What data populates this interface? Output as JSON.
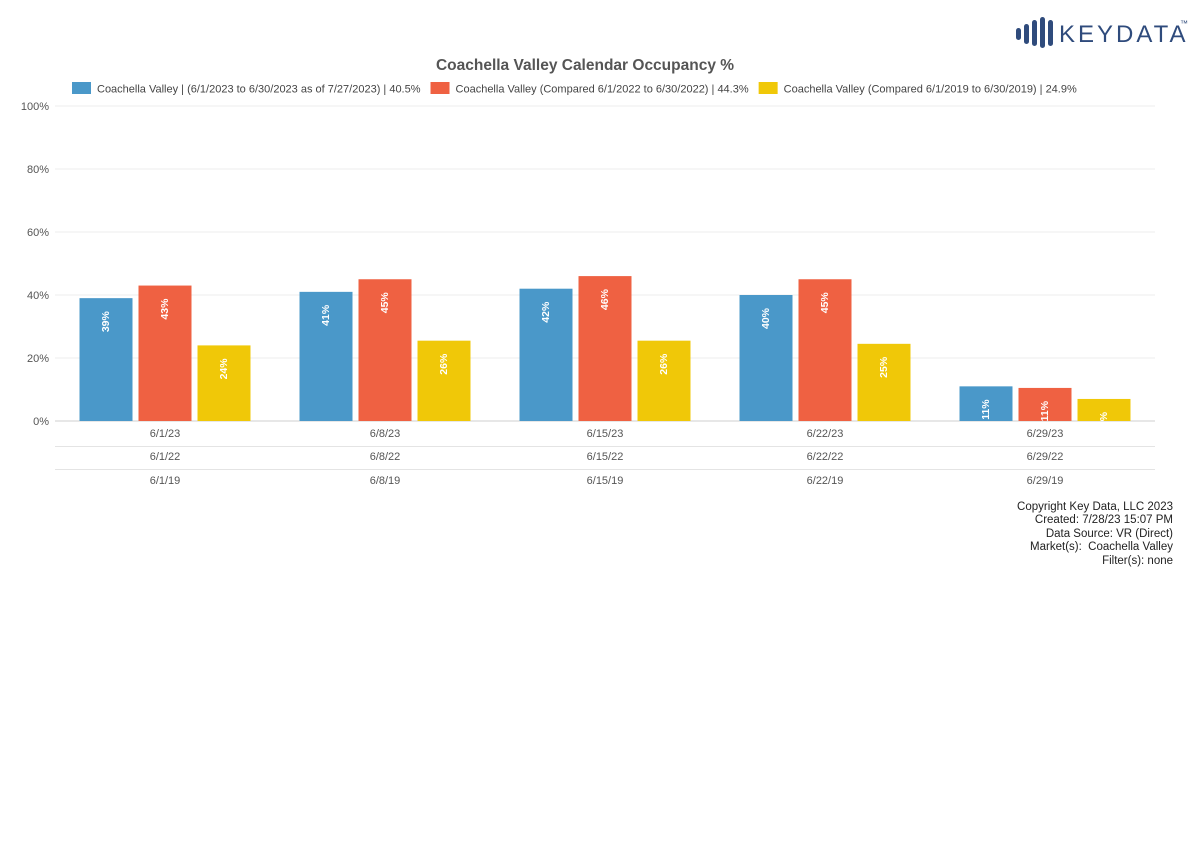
{
  "brand": {
    "logo_text": "KEYDATA",
    "trademark": "™",
    "color": "#2f4b7c"
  },
  "chart_data": {
    "type": "bar",
    "title": "Coachella Valley Calendar Occupancy %",
    "xlabel": "",
    "ylabel": "",
    "ylim": [
      0,
      100
    ],
    "yticks": [
      0,
      20,
      40,
      60,
      80,
      100
    ],
    "ytick_labels": [
      "0%",
      "20%",
      "40%",
      "60%",
      "80%",
      "100%"
    ],
    "grid": true,
    "legend_position": "top",
    "category_rows": [
      [
        "6/1/23",
        "6/8/23",
        "6/15/23",
        "6/22/23",
        "6/29/23"
      ],
      [
        "6/1/22",
        "6/8/22",
        "6/15/22",
        "6/22/22",
        "6/29/22"
      ],
      [
        "6/1/19",
        "6/8/19",
        "6/15/19",
        "6/22/19",
        "6/29/19"
      ]
    ],
    "series": [
      {
        "name": "Coachella Valley | (6/1/2023 to 6/30/2023 as of 7/27/2023) | 40.5%",
        "color": "#4a98c9",
        "values": [
          39,
          41,
          42,
          40,
          11
        ],
        "labels": [
          "39%",
          "41%",
          "42%",
          "40%",
          "11%"
        ]
      },
      {
        "name": "Coachella Valley (Compared 6/1/2022 to 6/30/2022) | 44.3%",
        "color": "#ef6142",
        "values": [
          43,
          45,
          46,
          45,
          10.5
        ],
        "labels": [
          "43%",
          "45%",
          "46%",
          "45%",
          "11%"
        ]
      },
      {
        "name": "Coachella Valley (Compared 6/1/2019 to 6/30/2019) | 24.9%",
        "color": "#f0c808",
        "values": [
          24,
          25.5,
          25.5,
          24.5,
          7
        ],
        "labels": [
          "24%",
          "26%",
          "26%",
          "25%",
          "7%"
        ]
      }
    ]
  },
  "footer": {
    "copyright": "Copyright Key Data, LLC 2023",
    "created": "Created: 7/28/23 15:07 PM",
    "source": "Data Source: VR (Direct)",
    "markets": "Market(s):  Coachella Valley",
    "filters": "Filter(s): none"
  }
}
